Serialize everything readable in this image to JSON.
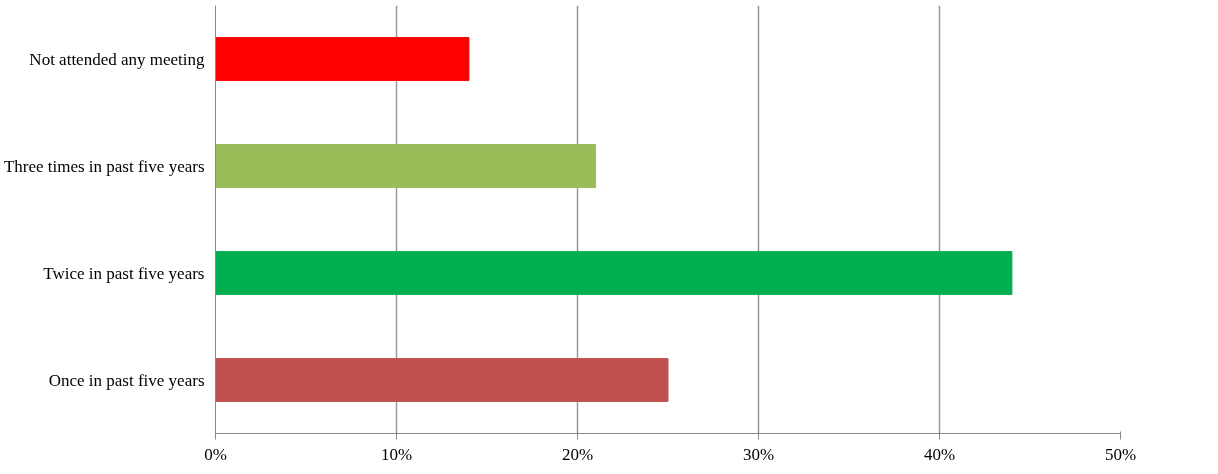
{
  "chart_data": {
    "type": "bar",
    "orientation": "horizontal",
    "categories": [
      "Not attended any meeting",
      "Three times in past five years",
      "Twice in past five years",
      "Once in past five years"
    ],
    "values": [
      14,
      21,
      44,
      25
    ],
    "colors": [
      "#ff0000",
      "#9bbb59",
      "#00b050",
      "#c0504d"
    ],
    "xlim": [
      0,
      50
    ],
    "xticks": [
      {
        "value": 0,
        "label": "0%"
      },
      {
        "value": 10,
        "label": "10%"
      },
      {
        "value": 20,
        "label": "20%"
      },
      {
        "value": 30,
        "label": "30%"
      },
      {
        "value": 40,
        "label": "40%"
      },
      {
        "value": 50,
        "label": "50%"
      }
    ],
    "grid": "x"
  }
}
